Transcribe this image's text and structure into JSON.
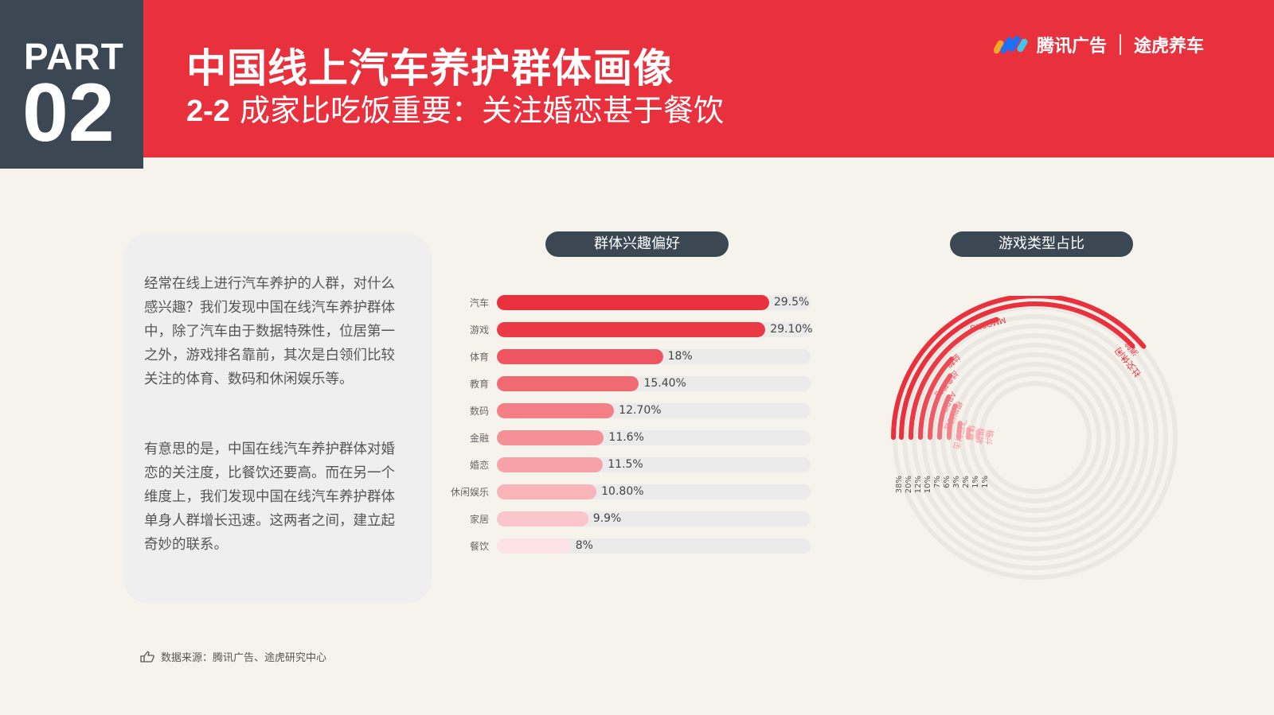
{
  "header": {
    "part_word": "PART",
    "part_num": "02",
    "title": "中国线上汽车养护群体画像",
    "subtitle_num": "2-2",
    "subtitle_text": "成家比吃饭重要：关注婚恋甚于餐饮",
    "brand_left": "腾讯广告",
    "brand_right": "途虎养车"
  },
  "text_card": {
    "p1": "经常在线上进行汽车养护的人群，对什么感兴趣？我们发现中国在线汽车养护群体中，除了汽车由于数据特殊性，位居第一之外，游戏排名靠前，其次是白领们比较关注的体育、数码和休闲娱乐等。",
    "p2": "有意思的是，中国在线汽车养护群体对婚恋的关注度，比餐饮还要高。而在另一个维度上，我们发现中国在线汽车养护群体单身人群增长迅速。这两者之间，建立起奇妙的联系。"
  },
  "pills": {
    "interest": "群体兴趣偏好",
    "games": "游戏类型占比"
  },
  "source": "数据来源：腾讯广告、途虎研究中心",
  "colors": {
    "red": "#e8313d",
    "dark": "#3b4753",
    "track": "#ebebeb"
  },
  "chart_data": [
    {
      "type": "bar",
      "title": "群体兴趣偏好",
      "orientation": "horizontal",
      "categories": [
        "汽车",
        "游戏",
        "体育",
        "教育",
        "数码",
        "金融",
        "婚恋",
        "休闲娱乐",
        "家居",
        "餐饮"
      ],
      "values": [
        29.5,
        29.1,
        18,
        15.4,
        12.7,
        11.6,
        11.5,
        10.8,
        9.9,
        8
      ],
      "labels": [
        "29.5%",
        "29.10%",
        "18%",
        "15.40%",
        "12.70%",
        "11.6%",
        "11.5%",
        "10.80%",
        "9.9%",
        "8%"
      ],
      "xlim": [
        0,
        34
      ],
      "colors": [
        "#e8313d",
        "#ea3a45",
        "#ee5560",
        "#f06a73",
        "#f37e86",
        "#f59099",
        "#f7a2a9",
        "#f9b4ba",
        "#fbc6ca",
        "#fde3e5"
      ]
    },
    {
      "type": "pie",
      "style": "radial-bar",
      "title": "游戏类型占比",
      "categories": [
        "消除",
        "MMOPRG",
        "益智",
        "战争策略",
        "ARPG",
        "模拟经营",
        "飞行射击",
        "体育",
        "棋牌",
        "格斗"
      ],
      "values": [
        38,
        20,
        12,
        10,
        7,
        6,
        3,
        2,
        1,
        1
      ],
      "labels": [
        "38%",
        "20%",
        "12%",
        "10%",
        "7%",
        "6%",
        "3%",
        "2%",
        "1%",
        "1%"
      ],
      "extra_arc_label": "社交休闲",
      "range": [
        0,
        50
      ]
    }
  ]
}
